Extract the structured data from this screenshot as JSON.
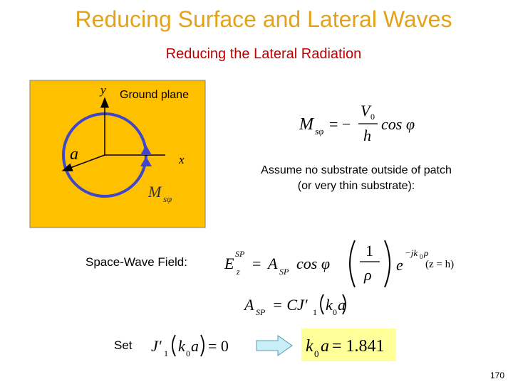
{
  "header": {
    "title": "Reducing Surface and Lateral Waves",
    "subtitle": "Reducing the Lateral Radiation"
  },
  "diagram": {
    "y_label": "y",
    "ground_plane": "Ground plane",
    "a_label": "a",
    "x_label": "x",
    "current": "M",
    "current_sub": "sφ"
  },
  "equations": {
    "m_current": {
      "lhs": "M",
      "lhs_sub": "sφ",
      "equals": "= −",
      "numerator": "V",
      "numerator_sub": "0",
      "denominator": "h",
      "rhs": "cos φ"
    },
    "assume": [
      "Assume no substrate outside of patch",
      "(or very thin substrate):"
    ],
    "space_wave": {
      "label": "Space-Wave Field:",
      "lhs": "E",
      "lhs_sup": "SP",
      "lhs_sub": "z",
      "equals": "=",
      "coef": "A",
      "coef_sub": "SP",
      "cos": "cos φ",
      "frac_num": "1",
      "frac_den": "ρ",
      "exp_base": "e",
      "exp": "−jk",
      "exp_sub": "0",
      "exp_end": "ρ",
      "condition": "(z = h)"
    },
    "amplitude": {
      "lhs": "A",
      "lhs_sub": "SP",
      "rhs": "= CJ′",
      "rhs_sub": "1",
      "arg": "k",
      "arg_sub": "0",
      "arg_end": "a"
    },
    "set": {
      "label": "Set",
      "fn": "J′",
      "fn_sub": "1",
      "arg": "k",
      "arg_sub": "0",
      "arg_end": "a",
      "rhs": "= 0"
    },
    "result": {
      "lhs": "k",
      "lhs_sub": "0",
      "lhs_end": "a",
      "rhs": "= 1.841"
    }
  },
  "page_number": "170"
}
